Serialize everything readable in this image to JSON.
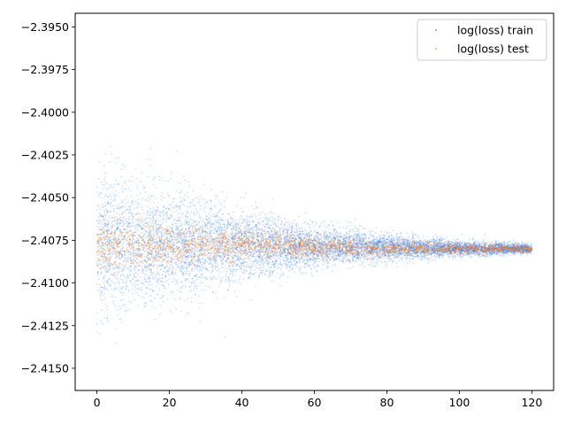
{
  "chart_data": {
    "type": "scatter",
    "title": "",
    "xlabel": "",
    "ylabel": "",
    "xlim": [
      -6,
      126
    ],
    "ylim": [
      -2.4163,
      -2.3942
    ],
    "xticks": [
      {
        "value": 0,
        "label": "0"
      },
      {
        "value": 20,
        "label": "20"
      },
      {
        "value": 40,
        "label": "40"
      },
      {
        "value": 60,
        "label": "60"
      },
      {
        "value": 80,
        "label": "80"
      },
      {
        "value": 100,
        "label": "100"
      },
      {
        "value": 120,
        "label": "120"
      }
    ],
    "yticks": [
      {
        "value": -2.395,
        "label": "−2.3950"
      },
      {
        "value": -2.3975,
        "label": "−2.3975"
      },
      {
        "value": -2.4,
        "label": "−2.4000"
      },
      {
        "value": -2.4025,
        "label": "−2.4025"
      },
      {
        "value": -2.405,
        "label": "−2.4050"
      },
      {
        "value": -2.4075,
        "label": "−2.4075"
      },
      {
        "value": -2.41,
        "label": "−2.4100"
      },
      {
        "value": -2.4125,
        "label": "−2.4125"
      },
      {
        "value": -2.415,
        "label": "−2.4150"
      }
    ],
    "grid": false,
    "legend_position": "top-right",
    "series": [
      {
        "name": "log(loss) train",
        "color": "#1f77ff",
        "description_points": [
          {
            "x": 0,
            "y_center": -2.4078,
            "y_spread": 0.0045
          },
          {
            "x": 20,
            "y_center": -2.4077,
            "y_spread": 0.0035
          },
          {
            "x": 40,
            "y_center": -2.4078,
            "y_spread": 0.0022
          },
          {
            "x": 60,
            "y_center": -2.4079,
            "y_spread": 0.0013
          },
          {
            "x": 80,
            "y_center": -2.4079,
            "y_spread": 0.0008
          },
          {
            "x": 100,
            "y_center": -2.408,
            "y_spread": 0.0005
          },
          {
            "x": 120,
            "y_center": -2.408,
            "y_spread": 0.0003
          }
        ],
        "x_range": [
          0,
          120
        ]
      },
      {
        "name": "log(loss) test",
        "color": "#ff7f0e",
        "description_points": [
          {
            "x": 0,
            "y_center": -2.4078,
            "y_spread": 0.002
          },
          {
            "x": 40,
            "y_center": -2.4078,
            "y_spread": 0.001
          },
          {
            "x": 80,
            "y_center": -2.408,
            "y_spread": 0.0005
          },
          {
            "x": 120,
            "y_center": -2.408,
            "y_spread": 0.0002
          }
        ],
        "x_range": [
          0,
          120
        ]
      }
    ]
  }
}
